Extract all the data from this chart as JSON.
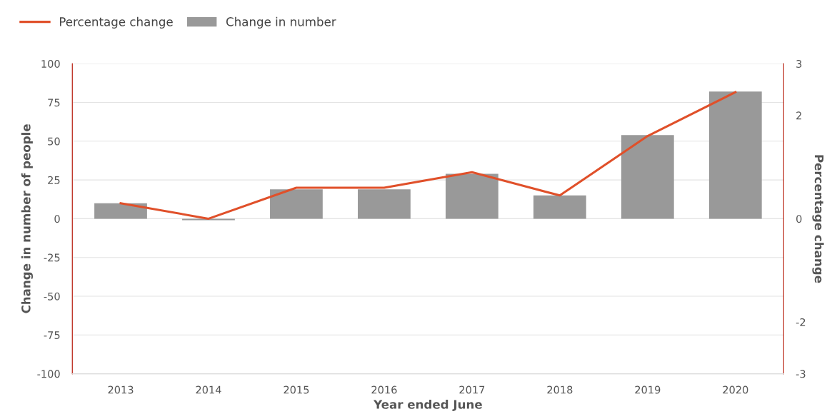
{
  "chart_data": {
    "type": "bar",
    "categories": [
      "2013",
      "2014",
      "2015",
      "2016",
      "2017",
      "2018",
      "2019",
      "2020"
    ],
    "series": [
      {
        "name": "Percentage change",
        "type": "line",
        "axis": "y2",
        "color": "#e0502a",
        "values": [
          0.3,
          0.0,
          0.6,
          0.6,
          0.9,
          0.45,
          1.6,
          2.45
        ]
      },
      {
        "name": "Change in number",
        "color": "#999999",
        "values": [
          10,
          -1,
          19,
          19,
          29,
          15,
          54,
          82
        ]
      }
    ],
    "xlabel": "Year ended June",
    "ylabel": "Change in number of people",
    "y2label": "Percentage change",
    "ylim": [
      -100,
      100
    ],
    "yticks": [
      -100,
      -75,
      -50,
      -25,
      0,
      25,
      50,
      75,
      100
    ],
    "y2lim": [
      -3,
      3
    ],
    "y2ticks": [
      -3,
      -2,
      0,
      2,
      3
    ],
    "grid": "y",
    "legend": "top left",
    "marker": "none",
    "line_style": "solid"
  }
}
